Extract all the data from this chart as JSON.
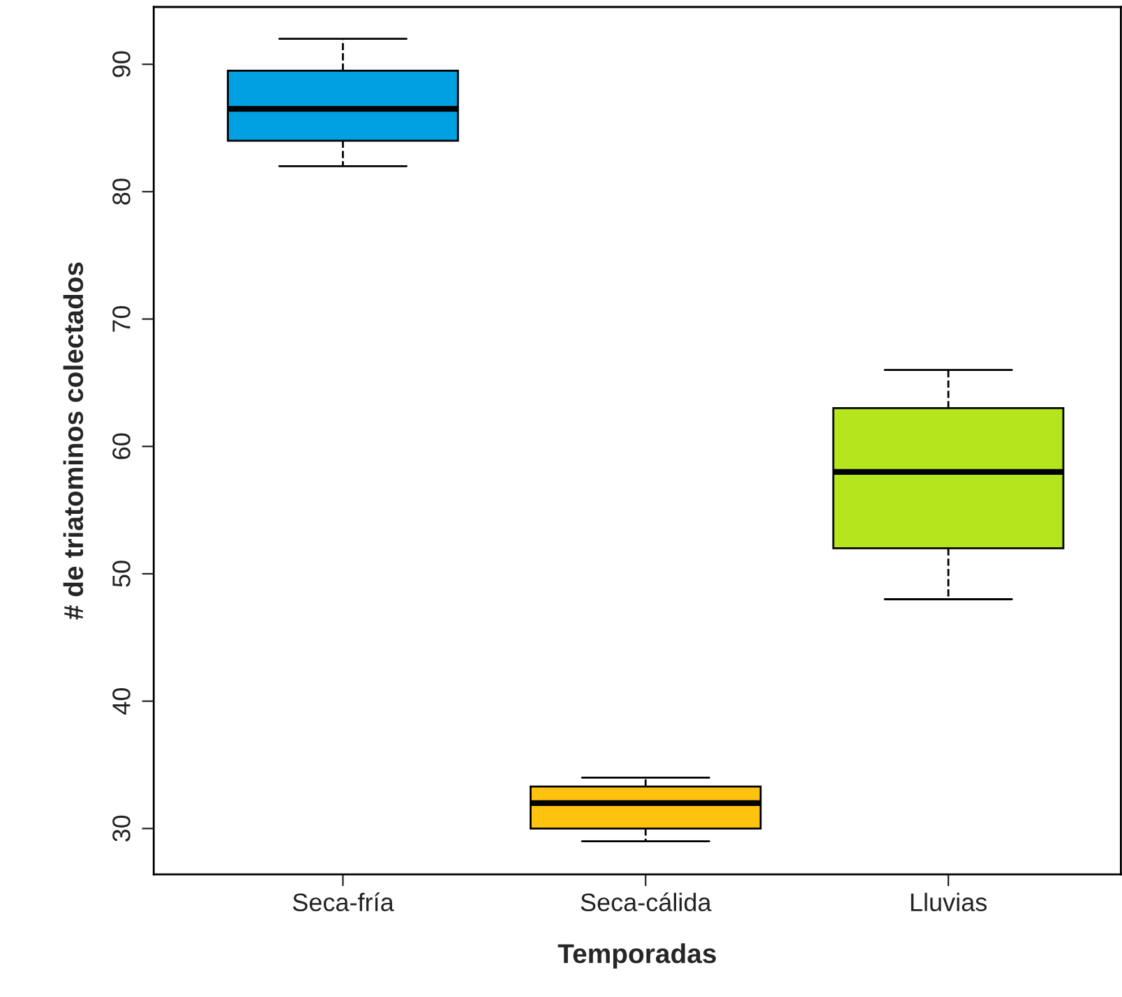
{
  "chart_data": {
    "type": "box",
    "xlabel": "Temporadas",
    "ylabel": "# de triatominos colectados",
    "categories": [
      "Seca-fría",
      "Seca-cálida",
      "Lluvias"
    ],
    "colors": [
      "#00a0e3",
      "#ffc20e",
      "#b5e61d"
    ],
    "boxes": [
      {
        "low": 82,
        "q1": 84,
        "median": 86.5,
        "q3": 89.5,
        "high": 92
      },
      {
        "low": 29,
        "q1": 30,
        "median": 32,
        "q3": 33.3,
        "high": 34
      },
      {
        "low": 48,
        "q1": 52,
        "median": 58,
        "q3": 63,
        "high": 66
      }
    ],
    "ylim": [
      26.4,
      94.5
    ],
    "yticks": [
      30,
      40,
      50,
      60,
      70,
      80,
      90
    ],
    "grid": false,
    "line_style": "dashed"
  }
}
